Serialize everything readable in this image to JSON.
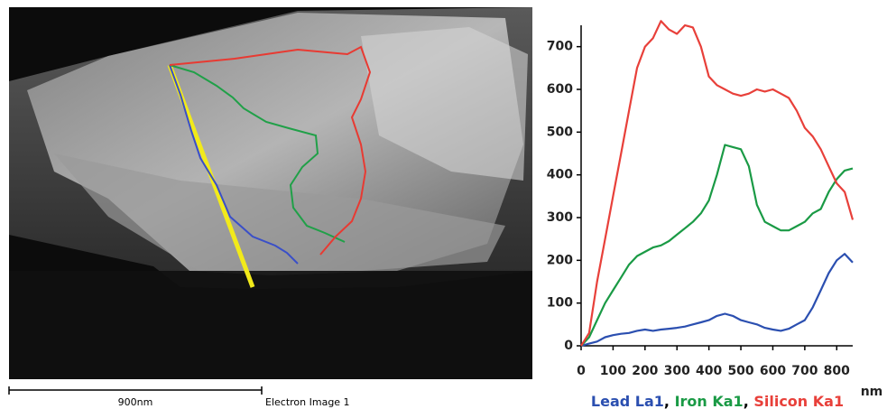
{
  "image": {
    "scale_label": "900nm",
    "caption": "Electron Image 1"
  },
  "chart_data": {
    "type": "line",
    "x_unit": "nm",
    "legend_separator": ",",
    "x": [
      0,
      25,
      50,
      75,
      100,
      125,
      150,
      175,
      200,
      225,
      250,
      275,
      300,
      325,
      350,
      375,
      400,
      425,
      450,
      475,
      500,
      525,
      550,
      575,
      600,
      625,
      650,
      675,
      700,
      725,
      750,
      775,
      800,
      825,
      850
    ],
    "series": [
      {
        "name": "Lead La1",
        "color": "#2b4fb0",
        "values": [
          0,
          5,
          10,
          20,
          25,
          28,
          30,
          35,
          38,
          35,
          38,
          40,
          42,
          45,
          50,
          55,
          60,
          70,
          75,
          70,
          60,
          55,
          50,
          42,
          38,
          35,
          40,
          50,
          60,
          90,
          130,
          170,
          200,
          215,
          195
        ]
      },
      {
        "name": "Iron Ka1",
        "color": "#1a9a45",
        "values": [
          0,
          20,
          60,
          100,
          130,
          160,
          190,
          210,
          220,
          230,
          235,
          245,
          260,
          275,
          290,
          310,
          340,
          400,
          470,
          465,
          460,
          420,
          330,
          290,
          280,
          270,
          270,
          280,
          290,
          310,
          320,
          360,
          390,
          410,
          415
        ]
      },
      {
        "name": "Silicon Ka1",
        "color": "#e8403a",
        "values": [
          0,
          30,
          150,
          250,
          350,
          450,
          550,
          650,
          700,
          720,
          760,
          740,
          730,
          750,
          745,
          700,
          630,
          610,
          600,
          590,
          585,
          590,
          600,
          595,
          600,
          590,
          580,
          550,
          510,
          490,
          460,
          420,
          380,
          360,
          295
        ]
      }
    ],
    "xlim": [
      0,
      850
    ],
    "xticks": [
      0,
      100,
      200,
      300,
      400,
      500,
      600,
      700,
      800
    ],
    "ylim": [
      0,
      750
    ],
    "yticks": [
      0,
      100,
      200,
      300,
      400,
      500,
      600,
      700
    ]
  }
}
